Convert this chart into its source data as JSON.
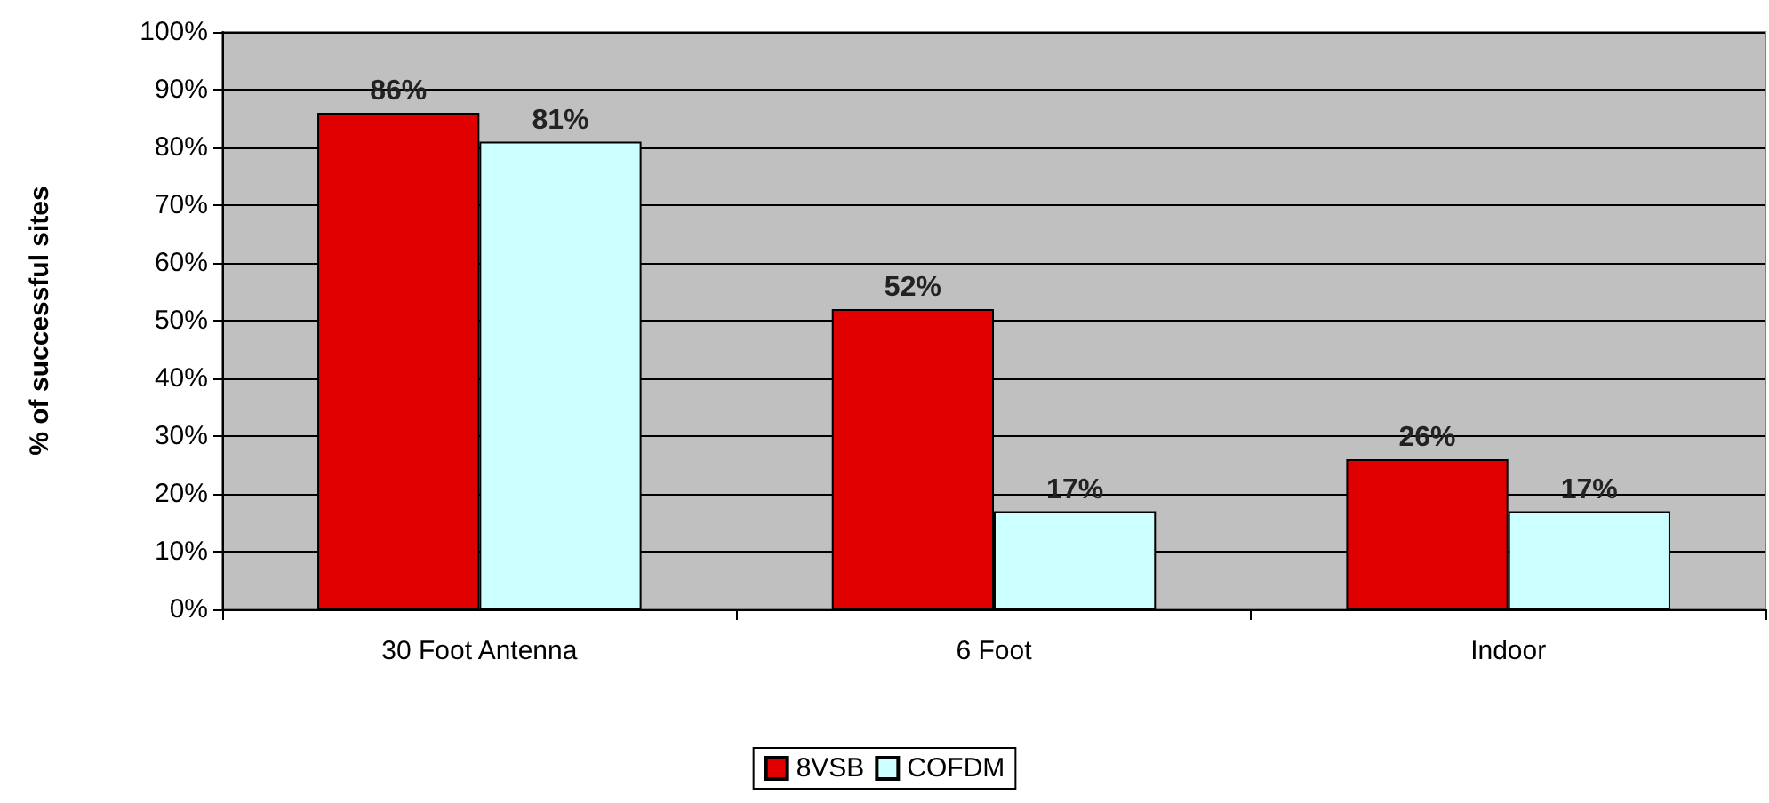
{
  "chart_data": {
    "type": "bar",
    "ylabel": "% of successful sites",
    "categories": [
      "30 Foot Antenna",
      "6 Foot",
      "Indoor"
    ],
    "series": [
      {
        "name": "8VSB",
        "color": "#e00000",
        "values": [
          86,
          52,
          26
        ],
        "value_labels": [
          "86%",
          "52%",
          "26%"
        ]
      },
      {
        "name": "COFDM",
        "color": "#ccffff",
        "values": [
          81,
          17,
          17
        ],
        "value_labels": [
          "81%",
          "17%",
          "17%"
        ]
      }
    ],
    "ylim": [
      0,
      100
    ],
    "yticks": [
      {
        "value": 0,
        "label": "0%"
      },
      {
        "value": 10,
        "label": "10%"
      },
      {
        "value": 20,
        "label": "20%"
      },
      {
        "value": 30,
        "label": "30%"
      },
      {
        "value": 40,
        "label": "40%"
      },
      {
        "value": 50,
        "label": "50%"
      },
      {
        "value": 60,
        "label": "60%"
      },
      {
        "value": 70,
        "label": "70%"
      },
      {
        "value": 80,
        "label": "80%"
      },
      {
        "value": 90,
        "label": "90%"
      },
      {
        "value": 100,
        "label": "100%"
      }
    ],
    "grid": "y",
    "legend": "bottom"
  }
}
